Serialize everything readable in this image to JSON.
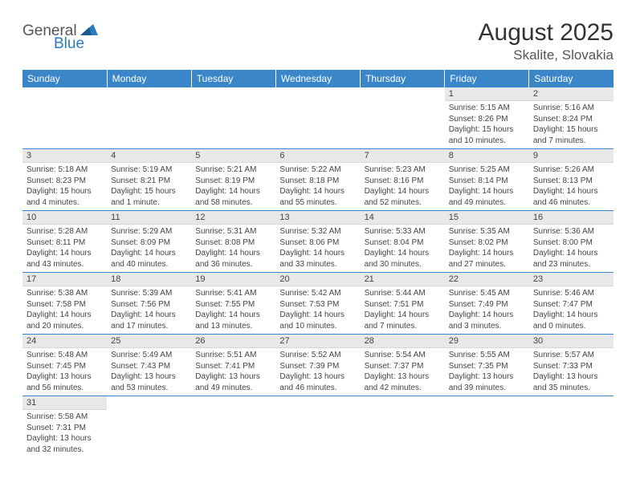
{
  "brand": {
    "part1": "General",
    "part2": "Blue",
    "text_color": "#555555",
    "accent_color": "#2b7bbf"
  },
  "title": "August 2025",
  "location": "Skalite, Slovakia",
  "header_bg": "#3a86c8",
  "row_divider_color": "#3a86c8",
  "daynum_bg": "#e8e8e8",
  "weekdays": [
    "Sunday",
    "Monday",
    "Tuesday",
    "Wednesday",
    "Thursday",
    "Friday",
    "Saturday"
  ],
  "weeks": [
    [
      null,
      null,
      null,
      null,
      null,
      {
        "n": "1",
        "sr": "5:15 AM",
        "ss": "8:26 PM",
        "dl": "15 hours and 10 minutes."
      },
      {
        "n": "2",
        "sr": "5:16 AM",
        "ss": "8:24 PM",
        "dl": "15 hours and 7 minutes."
      }
    ],
    [
      {
        "n": "3",
        "sr": "5:18 AM",
        "ss": "8:23 PM",
        "dl": "15 hours and 4 minutes."
      },
      {
        "n": "4",
        "sr": "5:19 AM",
        "ss": "8:21 PM",
        "dl": "15 hours and 1 minute."
      },
      {
        "n": "5",
        "sr": "5:21 AM",
        "ss": "8:19 PM",
        "dl": "14 hours and 58 minutes."
      },
      {
        "n": "6",
        "sr": "5:22 AM",
        "ss": "8:18 PM",
        "dl": "14 hours and 55 minutes."
      },
      {
        "n": "7",
        "sr": "5:23 AM",
        "ss": "8:16 PM",
        "dl": "14 hours and 52 minutes."
      },
      {
        "n": "8",
        "sr": "5:25 AM",
        "ss": "8:14 PM",
        "dl": "14 hours and 49 minutes."
      },
      {
        "n": "9",
        "sr": "5:26 AM",
        "ss": "8:13 PM",
        "dl": "14 hours and 46 minutes."
      }
    ],
    [
      {
        "n": "10",
        "sr": "5:28 AM",
        "ss": "8:11 PM",
        "dl": "14 hours and 43 minutes."
      },
      {
        "n": "11",
        "sr": "5:29 AM",
        "ss": "8:09 PM",
        "dl": "14 hours and 40 minutes."
      },
      {
        "n": "12",
        "sr": "5:31 AM",
        "ss": "8:08 PM",
        "dl": "14 hours and 36 minutes."
      },
      {
        "n": "13",
        "sr": "5:32 AM",
        "ss": "8:06 PM",
        "dl": "14 hours and 33 minutes."
      },
      {
        "n": "14",
        "sr": "5:33 AM",
        "ss": "8:04 PM",
        "dl": "14 hours and 30 minutes."
      },
      {
        "n": "15",
        "sr": "5:35 AM",
        "ss": "8:02 PM",
        "dl": "14 hours and 27 minutes."
      },
      {
        "n": "16",
        "sr": "5:36 AM",
        "ss": "8:00 PM",
        "dl": "14 hours and 23 minutes."
      }
    ],
    [
      {
        "n": "17",
        "sr": "5:38 AM",
        "ss": "7:58 PM",
        "dl": "14 hours and 20 minutes."
      },
      {
        "n": "18",
        "sr": "5:39 AM",
        "ss": "7:56 PM",
        "dl": "14 hours and 17 minutes."
      },
      {
        "n": "19",
        "sr": "5:41 AM",
        "ss": "7:55 PM",
        "dl": "14 hours and 13 minutes."
      },
      {
        "n": "20",
        "sr": "5:42 AM",
        "ss": "7:53 PM",
        "dl": "14 hours and 10 minutes."
      },
      {
        "n": "21",
        "sr": "5:44 AM",
        "ss": "7:51 PM",
        "dl": "14 hours and 7 minutes."
      },
      {
        "n": "22",
        "sr": "5:45 AM",
        "ss": "7:49 PM",
        "dl": "14 hours and 3 minutes."
      },
      {
        "n": "23",
        "sr": "5:46 AM",
        "ss": "7:47 PM",
        "dl": "14 hours and 0 minutes."
      }
    ],
    [
      {
        "n": "24",
        "sr": "5:48 AM",
        "ss": "7:45 PM",
        "dl": "13 hours and 56 minutes."
      },
      {
        "n": "25",
        "sr": "5:49 AM",
        "ss": "7:43 PM",
        "dl": "13 hours and 53 minutes."
      },
      {
        "n": "26",
        "sr": "5:51 AM",
        "ss": "7:41 PM",
        "dl": "13 hours and 49 minutes."
      },
      {
        "n": "27",
        "sr": "5:52 AM",
        "ss": "7:39 PM",
        "dl": "13 hours and 46 minutes."
      },
      {
        "n": "28",
        "sr": "5:54 AM",
        "ss": "7:37 PM",
        "dl": "13 hours and 42 minutes."
      },
      {
        "n": "29",
        "sr": "5:55 AM",
        "ss": "7:35 PM",
        "dl": "13 hours and 39 minutes."
      },
      {
        "n": "30",
        "sr": "5:57 AM",
        "ss": "7:33 PM",
        "dl": "13 hours and 35 minutes."
      }
    ],
    [
      {
        "n": "31",
        "sr": "5:58 AM",
        "ss": "7:31 PM",
        "dl": "13 hours and 32 minutes."
      },
      null,
      null,
      null,
      null,
      null,
      null
    ]
  ],
  "labels": {
    "sunrise": "Sunrise:",
    "sunset": "Sunset:",
    "daylight": "Daylight:"
  }
}
